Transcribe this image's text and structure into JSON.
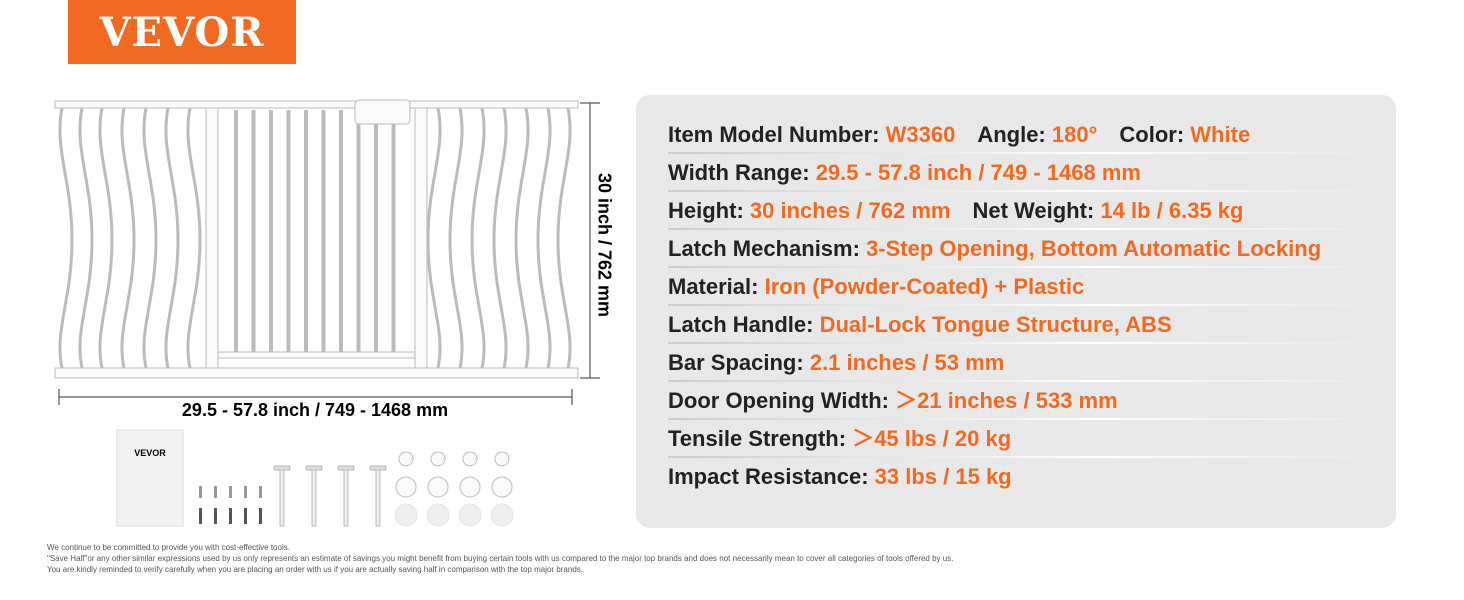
{
  "logo": "VEVOR",
  "dimensions": {
    "height": "30 inch / 762 mm",
    "width": "29.5 - 57.8 inch / 749 - 1468 mm"
  },
  "manual": {
    "brand": "VEVOR"
  },
  "specs": [
    [
      {
        "label": "Item Model Number:",
        "value": "W3360"
      },
      {
        "label": "Angle:",
        "value": "180°"
      },
      {
        "label": "Color:",
        "value": "White"
      }
    ],
    [
      {
        "label": "Width Range:",
        "value": "29.5 - 57.8 inch / 749 - 1468 mm"
      }
    ],
    [
      {
        "label": "Height:",
        "value": "30 inches / 762 mm"
      },
      {
        "label": "Net Weight:",
        "value": "14 lb / 6.35 kg"
      }
    ],
    [
      {
        "label": "Latch Mechanism:",
        "value": "3-Step Opening, Bottom Automatic Locking"
      }
    ],
    [
      {
        "label": "Material:",
        "value": "Iron (Powder-Coated) + Plastic"
      }
    ],
    [
      {
        "label": "Latch Handle:",
        "value": "Dual-Lock Tongue Structure, ABS"
      }
    ],
    [
      {
        "label": "Bar Spacing:",
        "value": "2.1 inches / 53 mm"
      }
    ],
    [
      {
        "label": "Door Opening Width:",
        "value": "＞21 inches / 533 mm"
      }
    ],
    [
      {
        "label": "Tensile Strength:",
        "value": "＞45 lbs / 20 kg"
      }
    ],
    [
      {
        "label": "Impact Resistance:",
        "value": "33 lbs / 15 kg"
      }
    ]
  ],
  "disclaimer": [
    "We continue to be committed to provide you with cost-effective tools.",
    "\"Save Half\"or any other similar expressions used by us only represents an estimate of savings you might benefit from buying certain tools with us compared to the major top brands and does not necessarily mean to cover all categories of tools offered by us.",
    "You are kindly reminded to verify carefully when you are placing an order with us if you are actually saving half in comparison with the top major brands."
  ]
}
